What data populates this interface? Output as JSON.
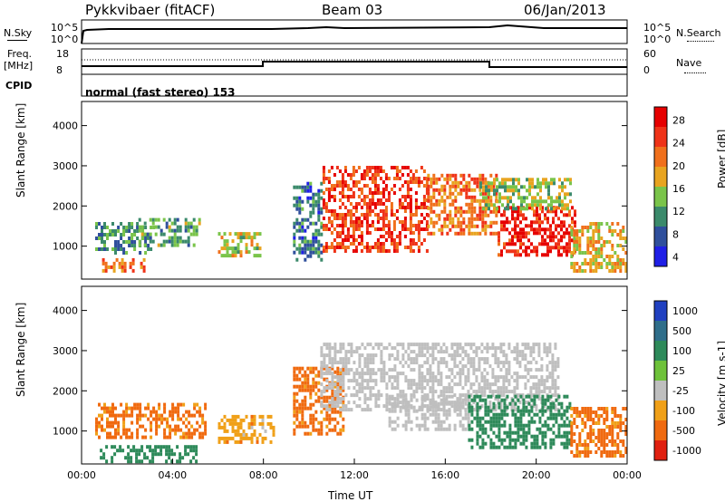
{
  "header": {
    "station": "Pykkvibaer (fitACF)",
    "beam": "Beam 03",
    "date": "06/Jan/2013"
  },
  "top_panels": {
    "nsky_label": "N.Sky",
    "nsky_ticks": [
      "10^5",
      "10^0"
    ],
    "nsearch_label": "N.Search",
    "nsearch_ticks": [
      "10^5",
      "10^0"
    ],
    "freq_label": "Freq.",
    "freq_unit": "[MHz]",
    "freq_ticks": [
      "18",
      "8"
    ],
    "nave_label": "Nave",
    "nave_ticks": [
      "60",
      "0"
    ],
    "cpid_label": "CPID",
    "cpid_value": "normal (fast stereo) 153"
  },
  "chart_data": [
    {
      "type": "heatmap",
      "quantity": "Power",
      "ylabel": "Slant Range [km]",
      "ylim": [
        180,
        4600
      ],
      "yticks": [
        "1000",
        "2000",
        "3000",
        "4000"
      ],
      "colorbar_label": "Power [dB]",
      "colorbar_ticks": [
        "28",
        "24",
        "20",
        "16",
        "12",
        "8",
        "4"
      ],
      "colorscale": [
        "#1f1fe6",
        "#2f4f9c",
        "#3b8a6b",
        "#7ac44a",
        "#e8a420",
        "#f0701c",
        "#ef3318",
        "#e60000"
      ],
      "regions": [
        {
          "t0": 0.6,
          "t1": 3.2,
          "r0": 800,
          "r1": 1600,
          "value": 10
        },
        {
          "t0": 2.5,
          "t1": 5.2,
          "r0": 1000,
          "r1": 1700,
          "value": 12
        },
        {
          "t0": 0.9,
          "t1": 2.7,
          "r0": 350,
          "r1": 700,
          "value": 22
        },
        {
          "t0": 6.0,
          "t1": 7.9,
          "r0": 750,
          "r1": 1350,
          "value": 16
        },
        {
          "t0": 9.3,
          "t1": 10.6,
          "r0": 700,
          "r1": 2600,
          "value": 8
        },
        {
          "t0": 10.6,
          "t1": 15.2,
          "r0": 900,
          "r1": 3000,
          "value": 26
        },
        {
          "t0": 15.2,
          "t1": 18.3,
          "r0": 1300,
          "r1": 2800,
          "value": 22
        },
        {
          "t0": 18.3,
          "t1": 21.7,
          "r0": 750,
          "r1": 2000,
          "value": 28
        },
        {
          "t0": 17.5,
          "t1": 21.5,
          "r0": 1900,
          "r1": 2700,
          "value": 14
        },
        {
          "t0": 21.5,
          "t1": 24.0,
          "r0": 350,
          "r1": 1600,
          "value": 18
        }
      ]
    },
    {
      "type": "heatmap",
      "quantity": "Velocity",
      "ylabel": "Slant Range [km]",
      "ylim": [
        180,
        4600
      ],
      "yticks": [
        "1000",
        "2000",
        "3000",
        "4000"
      ],
      "xlabel": "Time UT",
      "xticks": [
        "00:00",
        "04:00",
        "08:00",
        "12:00",
        "16:00",
        "20:00",
        "00:00"
      ],
      "colorbar_label": "Velocity [m s-1]",
      "colorbar_ticks": [
        "1000",
        "500",
        "100",
        "25",
        "-25",
        "-100",
        "-500",
        "-1000"
      ],
      "colorscale": [
        "#2040c0",
        "#2f6e8a",
        "#2e8a5a",
        "#6ec23a",
        "#bfbfbf",
        "#f0a018",
        "#f06a10",
        "#e02010"
      ],
      "regions": [
        {
          "t0": 0.6,
          "t1": 5.5,
          "r0": 800,
          "r1": 1700,
          "value": -150
        },
        {
          "t0": 0.8,
          "t1": 5.0,
          "r0": 250,
          "r1": 650,
          "value": 200
        },
        {
          "t0": 6.0,
          "t1": 8.5,
          "r0": 750,
          "r1": 1400,
          "value": -60
        },
        {
          "t0": 9.3,
          "t1": 11.5,
          "r0": 900,
          "r1": 2600,
          "value": -150
        },
        {
          "t0": 10.5,
          "t1": 21.0,
          "r0": 1500,
          "r1": 3200,
          "value": 0
        },
        {
          "t0": 13.5,
          "t1": 17.0,
          "r0": 1000,
          "r1": 1900,
          "value": 0
        },
        {
          "t0": 17.0,
          "t1": 21.5,
          "r0": 600,
          "r1": 1900,
          "value": 300
        },
        {
          "t0": 21.5,
          "t1": 24.0,
          "r0": 400,
          "r1": 1600,
          "value": -150
        }
      ]
    }
  ]
}
